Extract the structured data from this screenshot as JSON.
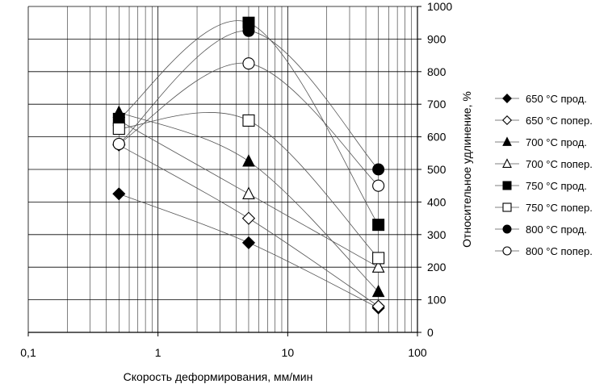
{
  "chart_data": {
    "type": "scatter",
    "title": "",
    "xlabel": "Скорость деформирования, мм/мин",
    "ylabel": "Относительное удлинение, %",
    "xscale": "log",
    "xlim": [
      0.1,
      100
    ],
    "ylim": [
      0,
      1000
    ],
    "x_ticks": [
      0.1,
      1,
      10,
      100
    ],
    "x_tick_labels": [
      "0,1",
      "1",
      "10",
      "100"
    ],
    "y_ticks": [
      0,
      100,
      200,
      300,
      400,
      500,
      600,
      700,
      800,
      900,
      1000
    ],
    "y_tick_labels": [
      "0",
      "100",
      "200",
      "300",
      "400",
      "500",
      "600",
      "700",
      "800",
      "900",
      "1000"
    ],
    "grid": true,
    "legend_position": "right",
    "lines": "smoothed",
    "x": [
      0.5,
      5,
      50
    ],
    "series": [
      {
        "name": "650 °C прод.",
        "marker": "diamond-filled",
        "values": [
          425,
          275,
          75
        ]
      },
      {
        "name": "650 °C попер.",
        "marker": "diamond-open",
        "values": [
          575,
          350,
          80
        ]
      },
      {
        "name": "700 °C прод.",
        "marker": "triangle-filled",
        "values": [
          675,
          525,
          125
        ]
      },
      {
        "name": "700 °C попер.",
        "marker": "triangle-open",
        "values": [
          650,
          425,
          200
        ]
      },
      {
        "name": "750 °C прод.",
        "marker": "square-filled",
        "values": [
          655,
          950,
          330
        ]
      },
      {
        "name": "750 °C попер.",
        "marker": "square-open",
        "values": [
          625,
          650,
          228
        ]
      },
      {
        "name": "800 °C прод.",
        "marker": "circle-filled",
        "values": [
          578,
          925,
          500
        ]
      },
      {
        "name": "800 °C попер.",
        "marker": "circle-open",
        "values": [
          578,
          825,
          450
        ]
      }
    ]
  }
}
